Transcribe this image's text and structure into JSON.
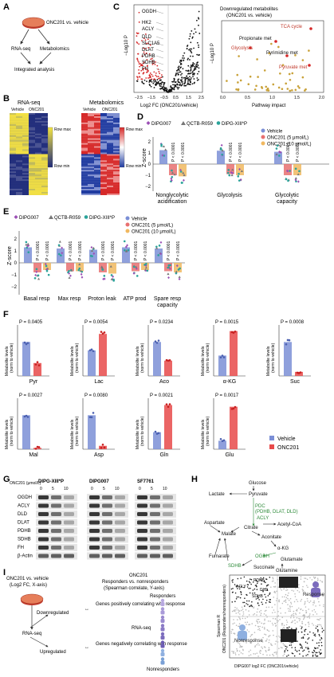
{
  "panels": {
    "A": "A",
    "B": "B",
    "C": "C",
    "D": "D",
    "E": "E",
    "F": "F",
    "G": "G",
    "H": "H",
    "I": "I"
  },
  "panelA": {
    "drug": "ONC201 vs. vehicle",
    "rnaseq": "RNA-seq",
    "metab": "Metabolomics",
    "integ": "Integrated analysis"
  },
  "panelB": {
    "rna_title": "RNA-seq",
    "met_title": "Metabolomics",
    "vehicle": "Vehicle",
    "onc": "ONC201",
    "rowmax": "Row max",
    "rowmin": "Row min"
  },
  "panelC": {
    "volcano_ylabel": "−Log10 P",
    "volcano_xlabel": "Log2 FC (ONC201/vehicle)",
    "volcano_xticks": [
      "−2.5",
      "−1.5",
      "−0.5",
      "0.5",
      "1.5",
      "2.5"
    ],
    "volcano_yticks": [
      "0",
      "1",
      "2",
      "3",
      "4",
      "5"
    ],
    "genes": [
      "OGDH",
      "HK2",
      "ACLY",
      "DLD",
      "SLC1A5",
      "DLAT",
      "PDHB",
      "SDHB",
      "FH"
    ],
    "path_title1": "Downregulated metabolites",
    "path_title2": "(ONC201 vs. vehicle)",
    "path_ylabel": "−Log10 P",
    "path_xlabel": "Pathway impact",
    "path_xticks": [
      "0.0",
      "0.5",
      "1.0",
      "1.5",
      "2.0"
    ],
    "path_yticks": [
      "0",
      "1",
      "2",
      "3",
      "4",
      "5"
    ],
    "path_labels": [
      "TCA cycle",
      "Propionate met",
      "Glycolysis",
      "Pyrimidine met",
      "Pyruvate met"
    ]
  },
  "panelD": {
    "legend_lines": [
      "DIPG007",
      "QCTB-R059",
      "DIPG-XIII*P"
    ],
    "legend_groups": [
      "Vehicle",
      "ONC201 (5 μmol/L)",
      "ONC201 (10 μmol/L)"
    ],
    "ylabel": "Z-score",
    "yticks": [
      "2",
      "1",
      "0",
      "−1",
      "−2"
    ],
    "categories": [
      "Nonglycolytic acidification",
      "Glycolysis",
      "Glycolytic capacity"
    ],
    "pvalue": "P < 0.0001"
  },
  "panelE": {
    "legend_lines": [
      "DIPG007",
      "QCTB-R059",
      "DIPG-XIII*P"
    ],
    "legend_groups": [
      "Vehicle",
      "ONC201 (5 μmol/L)",
      "ONC201 (10 μmol/L)"
    ],
    "ylabel": "Z-score",
    "yticks": [
      "2",
      "1",
      "0",
      "−1",
      "−2"
    ],
    "categories": [
      "Basal resp",
      "Max resp",
      "Proton leak",
      "ATP prod",
      "Spare resp capacity"
    ],
    "pvalue": "P < 0.0001"
  },
  "panelF": {
    "ylabel": "Metabolite levels (norm to vehicle)",
    "row1": [
      {
        "name": "Pyr",
        "p": "P = 0.0405"
      },
      {
        "name": "Lac",
        "p": "P = 0.0054"
      },
      {
        "name": "Aco",
        "p": "P = 0.0234"
      },
      {
        "name": "α-KG",
        "p": "P = 0.0015"
      },
      {
        "name": "Suc",
        "p": "P = 0.0008"
      }
    ],
    "row2": [
      {
        "name": "Mal",
        "p": "P = 0.0027"
      },
      {
        "name": "Asp",
        "p": "P = 0.0080"
      },
      {
        "name": "Gln",
        "p": "P = 0.0021"
      },
      {
        "name": "Glu",
        "p": "P = 0.0017"
      }
    ],
    "legend": [
      "Vehicle",
      "ONC201"
    ]
  },
  "panelG": {
    "conc_label": "ONC201 (μmol/L)",
    "lines": [
      "DIPG-XIII*P",
      "DIPG007",
      "SF7761"
    ],
    "doses": [
      "0",
      "5",
      "10"
    ],
    "proteins": [
      "OGDH",
      "ACLY",
      "DLD",
      "DLAT",
      "PDHB",
      "SDHB",
      "FH",
      "β-Actin"
    ]
  },
  "panelH": {
    "nodes": [
      "Glucose",
      "Lactate",
      "Pyruvate",
      "PDC",
      "(PDHB, DLAT, DLD)",
      "ACLY",
      "Acetyl-CoA",
      "Aspartate",
      "Citrate",
      "Malate",
      "Aconitate",
      "α-KG",
      "Fumarate",
      "OGDH",
      "Glutamate",
      "SDHB",
      "Succinate",
      "Glutamine"
    ]
  },
  "panelI": {
    "left_title1": "ONC201 vs. vehicle",
    "left_title2": "(Log2 FC, X-axis)",
    "mid_title1": "ONC201",
    "mid_title2": "Responders vs. nonresponders",
    "mid_title3": "(Spearman correlate, Y-axis)",
    "responders": "Responders",
    "nonresponders": "Nonresponders",
    "downregulated": "Downregulated",
    "upregulated": "Upregulated",
    "rnaseq": "RNA-seq",
    "rnaseq2": "RNA-seq",
    "pos": "Genes positively correlating with response",
    "neg": "Genes negatively correlating with response",
    "scatter_ylabel": "Spearman R",
    "scatter_ylabel2": "ONC201 (Responders/nonresponders)",
    "scatter_xlabel": "DIPG007 log2 FC (ONC201/vehicle)",
    "response": "Response",
    "nonresponse": "Nonresponse",
    "genes": [
      "PDHB",
      "ACLY",
      "DLD",
      "SDHB"
    ]
  }
}
